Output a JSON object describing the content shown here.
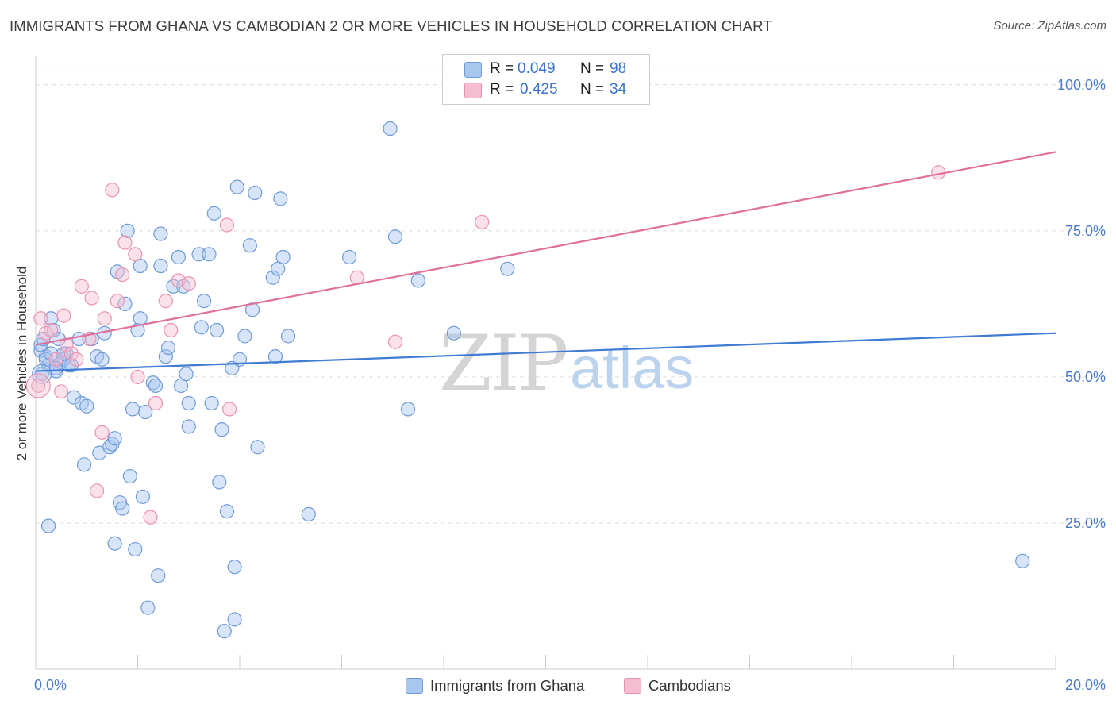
{
  "title": "IMMIGRANTS FROM GHANA VS CAMBODIAN 2 OR MORE VEHICLES IN HOUSEHOLD CORRELATION CHART",
  "source": "Source: ZipAtlas.com",
  "watermark": {
    "zip": "ZIP",
    "atlas": "atlas"
  },
  "legend": {
    "rows": [
      {
        "r_label": "R =",
        "r_value": "0.049",
        "n_label": "N =",
        "n_value": "98"
      },
      {
        "r_label": "R =",
        "r_value": "0.425",
        "n_label": "N =",
        "n_value": "34"
      }
    ]
  },
  "bottom_legend": [
    "Immigrants from Ghana",
    "Cambodians"
  ],
  "colors": {
    "ghana_fill": "#a9c6ef",
    "ghana_stroke": "#6f9bd9",
    "ghana_line": "#3f7cd2",
    "camb_fill": "#f6bdd0",
    "camb_stroke": "#ec92b1",
    "camb_line": "#e0709a",
    "grid": "#dddddd",
    "axis_text": "#4a7cc9"
  },
  "chart_data": {
    "type": "scatter",
    "title": "IMMIGRANTS FROM GHANA VS CAMBODIAN 2 OR MORE VEHICLES IN HOUSEHOLD CORRELATION CHART",
    "xlabel": "",
    "ylabel": "2 or more Vehicles in Household",
    "xlim": [
      0,
      20
    ],
    "ylim": [
      0,
      105
    ],
    "x_tick_labels": [
      "0.0%",
      "20.0%"
    ],
    "y_ticks": [
      25,
      50,
      75,
      100
    ],
    "y_tick_labels": [
      "25.0%",
      "50.0%",
      "75.0%",
      "100.0%"
    ],
    "series": [
      {
        "name": "Immigrants from Ghana",
        "r": 0.049,
        "n": 98,
        "trend": {
          "x": [
            0,
            20
          ],
          "y": [
            51.0,
            57.5
          ]
        },
        "points": [
          [
            0.1,
            54.5
          ],
          [
            0.1,
            55.5
          ],
          [
            0.15,
            56.5
          ],
          [
            0.2,
            53.5
          ],
          [
            0.25,
            52
          ],
          [
            0.3,
            60
          ],
          [
            0.35,
            58
          ],
          [
            0.4,
            51
          ],
          [
            0.45,
            56.5
          ],
          [
            0.5,
            52.5
          ],
          [
            0.55,
            53
          ],
          [
            0.6,
            54
          ],
          [
            0.7,
            52
          ],
          [
            0.75,
            46.5
          ],
          [
            0.85,
            56.5
          ],
          [
            0.9,
            45.5
          ],
          [
            0.95,
            35
          ],
          [
            1.0,
            45
          ],
          [
            1.1,
            56.5
          ],
          [
            1.2,
            53.5
          ],
          [
            1.25,
            37
          ],
          [
            1.3,
            53
          ],
          [
            1.35,
            57.5
          ],
          [
            1.45,
            38
          ],
          [
            1.5,
            38.5
          ],
          [
            1.55,
            39.5
          ],
          [
            1.55,
            21.5
          ],
          [
            1.6,
            68
          ],
          [
            1.65,
            28.5
          ],
          [
            1.7,
            27.5
          ],
          [
            1.75,
            62.5
          ],
          [
            1.8,
            75
          ],
          [
            1.85,
            33
          ],
          [
            1.9,
            44.5
          ],
          [
            1.95,
            20.5
          ],
          [
            2.0,
            58
          ],
          [
            2.05,
            69
          ],
          [
            2.05,
            60
          ],
          [
            2.1,
            29.5
          ],
          [
            2.15,
            44
          ],
          [
            2.2,
            10.5
          ],
          [
            2.3,
            49
          ],
          [
            2.35,
            48.5
          ],
          [
            2.4,
            16
          ],
          [
            2.45,
            69
          ],
          [
            2.45,
            74.5
          ],
          [
            2.55,
            53.5
          ],
          [
            2.6,
            55
          ],
          [
            2.7,
            65.5
          ],
          [
            2.8,
            70.5
          ],
          [
            2.85,
            48.5
          ],
          [
            2.9,
            65.5
          ],
          [
            2.95,
            50.5
          ],
          [
            3.0,
            45.5
          ],
          [
            3.0,
            41.5
          ],
          [
            3.2,
            71
          ],
          [
            3.25,
            58.5
          ],
          [
            3.3,
            63
          ],
          [
            3.4,
            71
          ],
          [
            3.45,
            45.5
          ],
          [
            3.5,
            78
          ],
          [
            3.55,
            58
          ],
          [
            3.6,
            32
          ],
          [
            3.65,
            41
          ],
          [
            3.7,
            6.5
          ],
          [
            3.75,
            27
          ],
          [
            3.85,
            51.5
          ],
          [
            3.9,
            17.5
          ],
          [
            3.9,
            8.5
          ],
          [
            3.95,
            82.5
          ],
          [
            4.0,
            53
          ],
          [
            4.1,
            57
          ],
          [
            4.2,
            72.5
          ],
          [
            4.25,
            61.5
          ],
          [
            4.3,
            81.5
          ],
          [
            4.35,
            38
          ],
          [
            4.65,
            67
          ],
          [
            4.7,
            53.5
          ],
          [
            4.75,
            68.5
          ],
          [
            4.8,
            80.5
          ],
          [
            4.85,
            70.5
          ],
          [
            4.95,
            57
          ],
          [
            5.35,
            26.5
          ],
          [
            6.15,
            70.5
          ],
          [
            6.95,
            92.5
          ],
          [
            7.05,
            74
          ],
          [
            7.3,
            44.5
          ],
          [
            7.5,
            66.5
          ],
          [
            8.2,
            57.5
          ],
          [
            9.25,
            68.5
          ],
          [
            19.35,
            18.5
          ],
          [
            0.25,
            24.5
          ],
          [
            0.12,
            50.5
          ],
          [
            0.65,
            52
          ],
          [
            0.2,
            53
          ],
          [
            0.4,
            51.5
          ],
          [
            0.3,
            54
          ],
          [
            0.55,
            54
          ]
        ]
      },
      {
        "name": "Cambodians",
        "r": 0.425,
        "n": 34,
        "trend": {
          "x": [
            0,
            20
          ],
          "y": [
            55.5,
            88.5
          ]
        },
        "points": [
          [
            0.05,
            48.5
          ],
          [
            0.1,
            60
          ],
          [
            0.2,
            57.5
          ],
          [
            0.3,
            58
          ],
          [
            0.4,
            53
          ],
          [
            0.5,
            47.5
          ],
          [
            0.55,
            60.5
          ],
          [
            0.6,
            55.5
          ],
          [
            0.7,
            54
          ],
          [
            0.8,
            53
          ],
          [
            0.9,
            65.5
          ],
          [
            1.05,
            56.5
          ],
          [
            1.1,
            63.5
          ],
          [
            1.2,
            30.5
          ],
          [
            1.3,
            40.5
          ],
          [
            1.35,
            60
          ],
          [
            1.5,
            82
          ],
          [
            1.6,
            63
          ],
          [
            1.7,
            67.5
          ],
          [
            1.75,
            73
          ],
          [
            1.95,
            71
          ],
          [
            2.0,
            50
          ],
          [
            2.25,
            26
          ],
          [
            2.35,
            45.5
          ],
          [
            2.55,
            63
          ],
          [
            2.65,
            58
          ],
          [
            2.8,
            66.5
          ],
          [
            3.0,
            66
          ],
          [
            3.75,
            76
          ],
          [
            3.8,
            44.5
          ],
          [
            6.3,
            67
          ],
          [
            7.05,
            56
          ],
          [
            8.75,
            76.5
          ],
          [
            17.7,
            85
          ]
        ]
      }
    ]
  }
}
